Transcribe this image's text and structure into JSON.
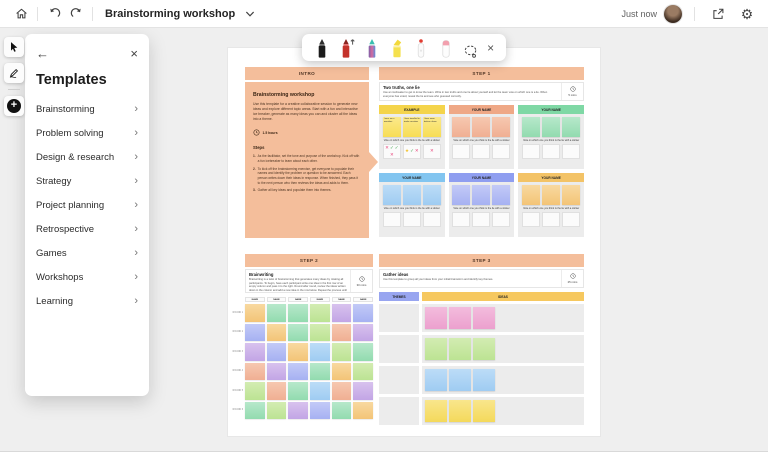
{
  "topbar": {
    "title": "Brainstorming workshop",
    "saved_status": "Just now"
  },
  "left_toolbar": {
    "tools": [
      {
        "name": "select-tool"
      },
      {
        "name": "ink-tool"
      },
      {
        "name": "create-button"
      }
    ]
  },
  "templates_panel": {
    "title": "Templates",
    "items": [
      {
        "label": "Brainstorming"
      },
      {
        "label": "Problem solving"
      },
      {
        "label": "Design & research"
      },
      {
        "label": "Strategy"
      },
      {
        "label": "Project planning"
      },
      {
        "label": "Retrospective"
      },
      {
        "label": "Games"
      },
      {
        "label": "Workshops"
      },
      {
        "label": "Learning"
      }
    ]
  },
  "pen_toolbar": {
    "tools": [
      {
        "name": "black-pen"
      },
      {
        "name": "red-arrow-pen"
      },
      {
        "name": "galaxy-pen"
      },
      {
        "name": "yellow-highlighter"
      },
      {
        "name": "laser-pointer"
      },
      {
        "name": "eraser"
      },
      {
        "name": "lasso-select"
      },
      {
        "name": "close"
      }
    ]
  },
  "board": {
    "intro": {
      "banner": "INTRO",
      "title": "Brainstorming workshop",
      "description": "Use this template for a creative collaborative session to generate new ideas and explore different topic areas. Start with a fun and interactive ice breaker, generate as many ideas you can and cluster all the ideas into a theme.",
      "duration": "1.5 hours",
      "steps_heading": "Steps",
      "steps": [
        "As the facilitator, set the tone and purpose of the workshop. Kick off with a fun icebreaker to learn about each other.",
        "To kick off the brainstorming exercise, get everyone to populate their names and identify the problem or question to be answered. Each person writes down their ideas in response. When finished, they pass it to the next person who then reviews the ideas and adds to them.",
        "Gather all key ideas and populate them into themes."
      ]
    },
    "step1": {
      "banner": "STEP 1",
      "card": {
        "title": "Two truths, one lie",
        "description": "Use an icebreaker to get to know the team. Write in two truths and one lie about yourself and let the team vote on which one is a lie. When everyone has voted, reveal the lie and see who guessed correctly.",
        "duration": "5 mins"
      },
      "vote_caption": "Vote on which one you think is the lie with a sticker",
      "columns": [
        {
          "label": "EXAMPLE",
          "color": "yellow",
          "notes": [
            "I once ran a marathon",
            "I have travelled to twelve countries",
            "I have never broken a bone"
          ],
          "stickers": [
            [
              "x",
              "check",
              "check",
              "x"
            ],
            [
              "star",
              "check",
              "x"
            ],
            [
              "x"
            ]
          ]
        },
        {
          "label": "YOUR NAME",
          "color": "peach",
          "notes": [
            "",
            "",
            ""
          ],
          "stickers": [
            [],
            [],
            []
          ]
        },
        {
          "label": "YOUR NAME",
          "color": "green",
          "notes": [
            "",
            "",
            ""
          ],
          "stickers": [
            [],
            [],
            []
          ]
        },
        {
          "label": "YOUR NAME",
          "color": "blue",
          "notes": [
            "",
            "",
            ""
          ],
          "stickers": [
            [],
            [],
            []
          ]
        },
        {
          "label": "YOUR NAME",
          "color": "periwinkle",
          "notes": [
            "",
            "",
            ""
          ],
          "stickers": [
            [],
            [],
            []
          ]
        },
        {
          "label": "YOUR NAME",
          "color": "orange",
          "notes": [
            "",
            "",
            ""
          ],
          "stickers": [
            [],
            [],
            []
          ]
        }
      ]
    },
    "step2": {
      "banner": "STEP 2",
      "card": {
        "title": "Brainwriting",
        "description": "Brainwriting is a twist of brainstorming that generates many ideas by rotating all participants. To begin, have each participant write one idea in the first row of an empty column and pass it to the right. Round after round, review the ideas written down in the column and add a new idea in the row below. Repeat the process until everyone has added one idea to each column.",
        "duration": "30 mins"
      },
      "column_header": "NAME",
      "row_labels": [
        "ROUND 1",
        "ROUND 2",
        "ROUND 3",
        "ROUND 4",
        "ROUND 5",
        "ROUND 6"
      ],
      "grid": [
        [
          "orange",
          "green",
          "green",
          "lightgreen",
          "purple",
          "periwinkle"
        ],
        [
          "periwinkle",
          "orange",
          "green",
          "lightgreen",
          "peach",
          "purple"
        ],
        [
          "purple",
          "periwinkle",
          "orange",
          "blue",
          "lightgreen",
          "green"
        ],
        [
          "peach",
          "purple",
          "periwinkle",
          "green",
          "orange",
          "lightgreen"
        ],
        [
          "lightgreen",
          "peach",
          "green",
          "blue",
          "peach",
          "purple"
        ],
        [
          "green",
          "lightgreen",
          "purple",
          "periwinkle",
          "green",
          "orange"
        ]
      ]
    },
    "step3": {
      "banner": "STEP 3",
      "card": {
        "title": "Gather ideas",
        "description": "Use this template to group all your ideas from your initial brainstorm and identify key themes.",
        "duration": "25 mins"
      },
      "themes_header": "THEMES",
      "ideas_header": "IDEAS",
      "rows": [
        {
          "notes_color": "pink"
        },
        {
          "notes_color": "lightgreen"
        },
        {
          "notes_color": "blue"
        },
        {
          "notes_color": "gold"
        }
      ]
    }
  },
  "palette": {
    "banner_peach": "#F4BE9B",
    "board_bg": "#FFFFFF",
    "app_bg": "#EFEFEF",
    "cell_bg": "#ECECEC",
    "note_colors": {
      "yellow": [
        "#FBE98C",
        "#F7DD55"
      ],
      "peach": [
        "#F6C8B0",
        "#F0AF93"
      ],
      "green": [
        "#B7E8CB",
        "#92DBAF"
      ],
      "lightgreen": [
        "#D3ECB2",
        "#BCE393"
      ],
      "blue": [
        "#BCDCF7",
        "#9FCCF2"
      ],
      "periwinkle": [
        "#C3CAF7",
        "#A6B1F2"
      ],
      "orange": [
        "#F8D9A0",
        "#F3C477"
      ],
      "purple": [
        "#D8C2EE",
        "#C2A5E5"
      ],
      "pink": [
        "#F3BCDD",
        "#ECA0CE"
      ],
      "gold": [
        "#F9E68C",
        "#F4D95B"
      ]
    },
    "header_colors": {
      "yellow": "#F4D44B",
      "peach": "#EFA886",
      "green": "#7FD8A5",
      "blue": "#82C5F0",
      "periwinkle": "#8F9EF0",
      "orange": "#F3C367",
      "themes": "#98A5F0",
      "ideas": "#F6C85F"
    },
    "sticker_colors": {
      "x": "#E8457B",
      "check": "#3FA34D",
      "star": "#F2C230"
    }
  }
}
